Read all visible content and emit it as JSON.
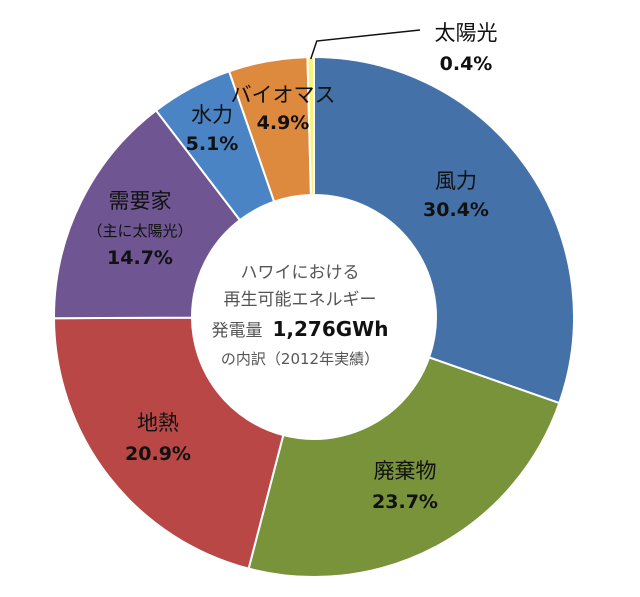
{
  "chart_data": {
    "type": "pie",
    "variant": "donut",
    "center_text": {
      "line1": "ハワイにおける",
      "line2": "再生可能エネルギー",
      "line3_prefix": "発電量",
      "line3_value": "1,276GWh",
      "line4": "の内訳（2012年実績）"
    },
    "slices": [
      {
        "label": "風力",
        "sublabel": "",
        "percent_label": "30.4%",
        "value": 30.4,
        "color": "#4472a8"
      },
      {
        "label": "廃棄物",
        "sublabel": "",
        "percent_label": "23.7%",
        "value": 23.7,
        "color": "#78933a"
      },
      {
        "label": "地熱",
        "sublabel": "",
        "percent_label": "20.9%",
        "value": 20.9,
        "color": "#b84746"
      },
      {
        "label": "需要家",
        "sublabel": "（主に太陽光）",
        "percent_label": "14.7%",
        "value": 14.7,
        "color": "#6f5592"
      },
      {
        "label": "水力",
        "sublabel": "",
        "percent_label": "5.1%",
        "value": 5.1,
        "color": "#4a84c4"
      },
      {
        "label": "バイオマス",
        "sublabel": "",
        "percent_label": "4.9%",
        "value": 4.9,
        "color": "#de8a3e"
      },
      {
        "label": "太陽光",
        "sublabel": "",
        "percent_label": "0.4%",
        "value": 0.4,
        "color": "#f6f27a"
      }
    ]
  }
}
